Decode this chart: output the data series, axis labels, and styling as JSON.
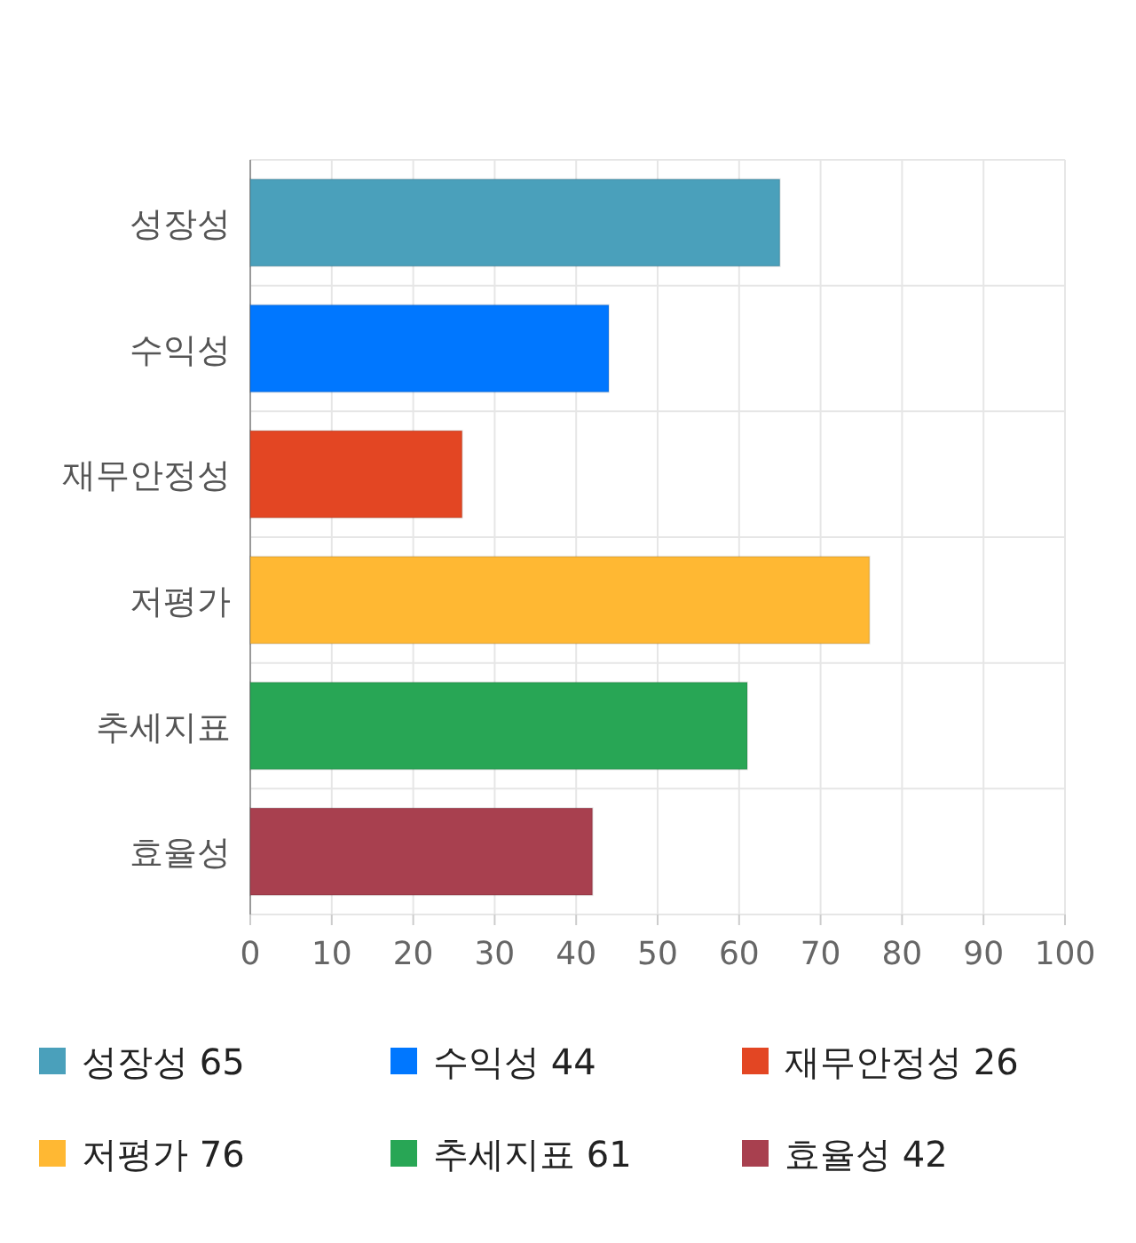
{
  "chart_data": {
    "type": "bar",
    "orientation": "horizontal",
    "categories": [
      "성장성",
      "수익성",
      "재무안정성",
      "저평가",
      "추세지표",
      "효율성"
    ],
    "series": [
      {
        "name": "성장성 65",
        "color": "#4aa0bb",
        "values": [
          65,
          null,
          null,
          null,
          null,
          null
        ]
      },
      {
        "name": "수익성 44",
        "color": "#0077ff",
        "values": [
          null,
          44,
          null,
          null,
          null,
          null
        ]
      },
      {
        "name": "재무안정성 26",
        "color": "#e34623",
        "values": [
          null,
          null,
          26,
          null,
          null,
          null
        ]
      },
      {
        "name": "저평가 76",
        "color": "#ffb833",
        "values": [
          null,
          null,
          null,
          76,
          null,
          null
        ]
      },
      {
        "name": "추세지표 61",
        "color": "#28a655",
        "values": [
          null,
          null,
          null,
          null,
          61,
          null
        ]
      },
      {
        "name": "효율성 42",
        "color": "#a8404f",
        "values": [
          null,
          null,
          null,
          null,
          null,
          42
        ]
      }
    ],
    "xlim": [
      0,
      100
    ],
    "xticks": [
      0,
      10,
      20,
      30,
      40,
      50,
      60,
      70,
      80,
      90,
      100
    ],
    "grid": true,
    "legend": "bottom"
  }
}
